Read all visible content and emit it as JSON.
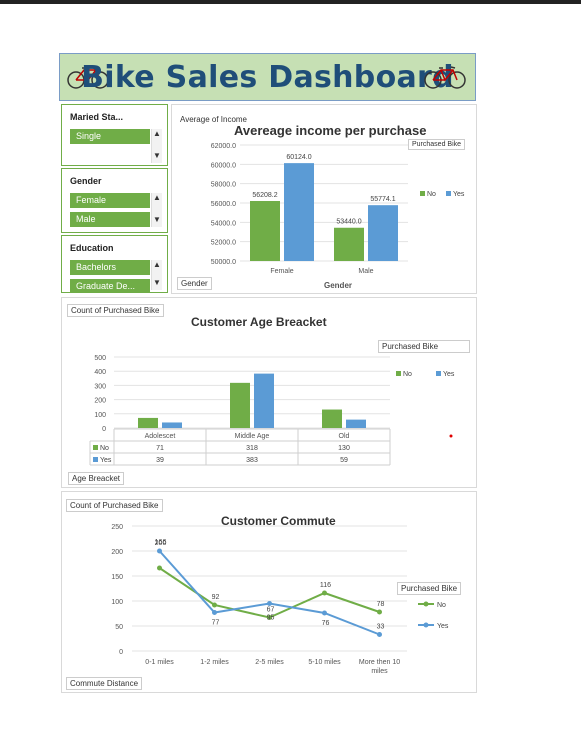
{
  "dashboard": {
    "title": "Bike Sales Dashboard"
  },
  "slicers": {
    "marital": {
      "title": "Maried Sta...",
      "items": [
        "Single"
      ]
    },
    "gender": {
      "title": "Gender",
      "items": [
        "Female",
        "Male"
      ]
    },
    "education": {
      "title": "Education",
      "items": [
        "Bachelors",
        "Graduate De..."
      ]
    }
  },
  "income_panel": {
    "value_field": "Average of Income",
    "axis_field": "Gender",
    "legend_field": "Purchased Bike"
  },
  "age_panel": {
    "value_field": "Count of Purchased Bike",
    "axis_field": "Age Breacket",
    "legend_field": "Purchased Bike"
  },
  "commute_panel": {
    "value_field": "Count of Purchased Bike",
    "axis_field": "Commute Distance",
    "legend_field": "Purchased Bike"
  },
  "colors": {
    "no": "#70ad47",
    "yes": "#5b9bd5",
    "title_bg": "#c6e0b4",
    "title_text": "#1f4e79"
  },
  "chart_data": [
    {
      "type": "bar",
      "title": "Avereage income per purchase",
      "xlabel": "Gender",
      "categories": [
        "Female",
        "Male"
      ],
      "series": [
        {
          "name": "No",
          "values": [
            56208.2,
            53440.0
          ]
        },
        {
          "name": "Yes",
          "values": [
            60124.0,
            55774.1
          ]
        }
      ],
      "ylim": [
        50000,
        62000
      ],
      "yticks": [
        "50000.0",
        "52000.0",
        "54000.0",
        "56000.0",
        "58000.0",
        "60000.0",
        "62000.0"
      ],
      "legend": "right",
      "grid": true
    },
    {
      "type": "bar",
      "title": "Customer Age Breacket",
      "categories": [
        "Adolescet",
        "Middle Age",
        "Old"
      ],
      "series": [
        {
          "name": "No",
          "values": [
            71,
            318,
            130
          ]
        },
        {
          "name": "Yes",
          "values": [
            39,
            383,
            59
          ]
        }
      ],
      "ylim": [
        0,
        500
      ],
      "yticks": [
        "0",
        "100",
        "200",
        "300",
        "400",
        "500"
      ],
      "legend": "top-right",
      "data_table": true,
      "grid": true
    },
    {
      "type": "line",
      "title": "Customer Commute",
      "categories": [
        "0-1 miles",
        "1-2 miles",
        "2-5 miles",
        "5-10 miles",
        "More then 10 miles"
      ],
      "series": [
        {
          "name": "No",
          "values": [
            166,
            92,
            67,
            116,
            78
          ]
        },
        {
          "name": "Yes",
          "values": [
            200,
            77,
            95,
            76,
            33
          ]
        }
      ],
      "ylim": [
        0,
        250
      ],
      "yticks": [
        "0",
        "50",
        "100",
        "150",
        "200",
        "250"
      ],
      "legend": "right",
      "grid": true
    }
  ]
}
